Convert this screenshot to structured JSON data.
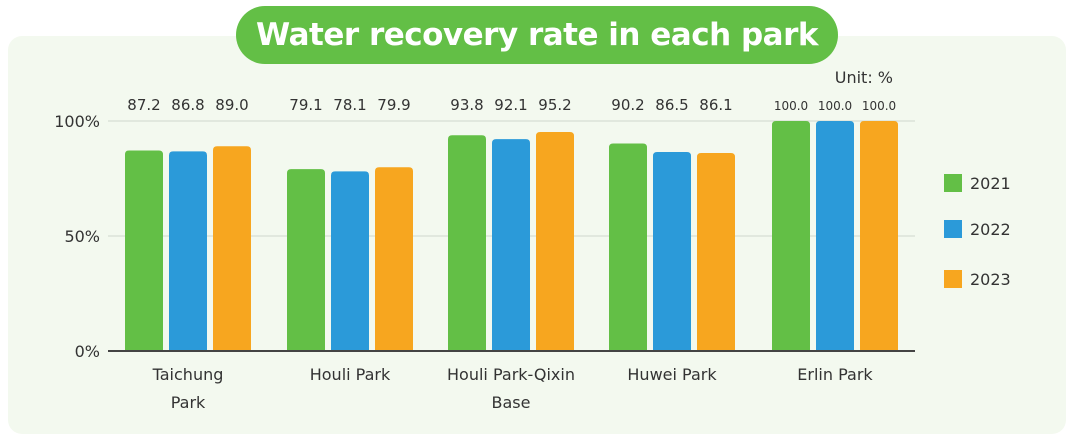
{
  "title": "Water recovery rate in each park",
  "unit_label": "Unit: %",
  "colors": {
    "2021": "#63bf46",
    "2022": "#2b9ad9",
    "2023": "#f7a61f",
    "title_bg": "#63bf46"
  },
  "chart_data": {
    "type": "bar",
    "title": "Water recovery rate in each park",
    "xlabel": "",
    "ylabel": "",
    "ylim": [
      0,
      100
    ],
    "yticks": [
      "0%",
      "50%",
      "100%"
    ],
    "ytick_values": [
      0,
      50,
      100
    ],
    "grid": true,
    "legend_position": "right",
    "categories": [
      [
        "Taichung",
        "Park"
      ],
      [
        "Houli Park"
      ],
      [
        "Houli Park-Qixin",
        "Base"
      ],
      [
        "Huwei Park"
      ],
      [
        "Erlin Park"
      ]
    ],
    "series": [
      {
        "name": "2021",
        "values": [
          87.2,
          79.1,
          93.8,
          90.2,
          100.0
        ],
        "labels": [
          "87.2",
          "79.1",
          "93.8",
          "90.2",
          "100.0"
        ]
      },
      {
        "name": "2022",
        "values": [
          86.8,
          78.1,
          92.1,
          86.5,
          100.0
        ],
        "labels": [
          "86.8",
          "78.1",
          "92.1",
          "86.5",
          "100.0"
        ]
      },
      {
        "name": "2023",
        "values": [
          89.0,
          79.9,
          95.2,
          86.1,
          100.0
        ],
        "labels": [
          "89.0",
          "79.9",
          "95.2",
          "86.1",
          "100.0"
        ]
      }
    ]
  }
}
